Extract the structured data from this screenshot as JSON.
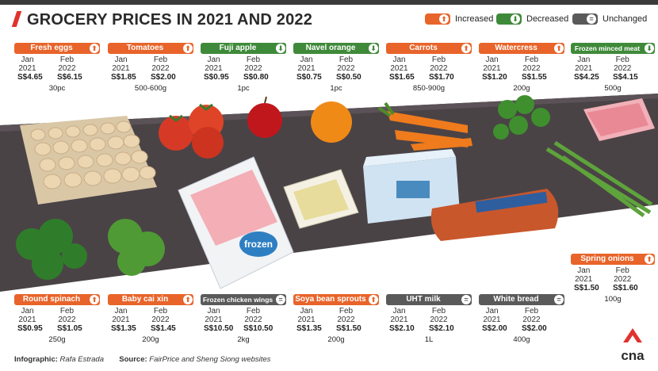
{
  "title": "GROCERY PRICES IN 2021 AND 2022",
  "legend": {
    "increased": "Increased",
    "decreased": "Decreased",
    "unchanged": "Unchanged",
    "colors": {
      "increased": "#e8642a",
      "decreased": "#3f8a3a",
      "unchanged": "#5a5a5a"
    }
  },
  "column_labels": {
    "before": "Jan 2021",
    "after": "Feb 2022"
  },
  "items": [
    {
      "name": "Fresh eggs",
      "status": "increased",
      "jan2021": "S$4.65",
      "feb2022": "S$6.15",
      "qty": "30pc"
    },
    {
      "name": "Tomatoes",
      "status": "increased",
      "jan2021": "S$1.85",
      "feb2022": "S$2.00",
      "qty": "500-600g"
    },
    {
      "name": "Fuji apple",
      "status": "decreased",
      "jan2021": "S$0.95",
      "feb2022": "S$0.80",
      "qty": "1pc"
    },
    {
      "name": "Navel orange",
      "status": "decreased",
      "jan2021": "S$0.75",
      "feb2022": "S$0.50",
      "qty": "1pc"
    },
    {
      "name": "Carrots",
      "status": "increased",
      "jan2021": "S$1.65",
      "feb2022": "S$1.70",
      "qty": "850-900g"
    },
    {
      "name": "Watercress",
      "status": "increased",
      "jan2021": "S$1.20",
      "feb2022": "S$1.55",
      "qty": "200g"
    },
    {
      "name": "Frozen minced meat",
      "status": "decreased",
      "jan2021": "S$4.25",
      "feb2022": "S$4.15",
      "qty": "500g"
    },
    {
      "name": "Spring onions",
      "status": "increased",
      "jan2021": "S$1.50",
      "feb2022": "S$1.60",
      "qty": "100g"
    },
    {
      "name": "Round spinach",
      "status": "increased",
      "jan2021": "S$0.95",
      "feb2022": "S$1.05",
      "qty": "250g"
    },
    {
      "name": "Baby cai xin",
      "status": "increased",
      "jan2021": "S$1.35",
      "feb2022": "S$1.45",
      "qty": "200g"
    },
    {
      "name": "Frozen chicken wings",
      "status": "unchanged",
      "jan2021": "S$10.50",
      "feb2022": "S$10.50",
      "qty": "2kg"
    },
    {
      "name": "Soya bean sprouts",
      "status": "increased",
      "jan2021": "S$1.35",
      "feb2022": "S$1.50",
      "qty": "200g"
    },
    {
      "name": "UHT milk",
      "status": "unchanged",
      "jan2021": "S$2.10",
      "feb2022": "S$2.10",
      "qty": "1L"
    },
    {
      "name": "White bread",
      "status": "unchanged",
      "jan2021": "S$2.00",
      "feb2022": "S$2.00",
      "qty": "400g"
    }
  ],
  "package_text": {
    "frozen": "frozen"
  },
  "footer": {
    "infographic_label": "Infographic:",
    "infographic_value": "Rafa Estrada",
    "source_label": "Source:",
    "source_value": "FairPrice and Sheng Siong websites"
  },
  "logo_text": "cna"
}
